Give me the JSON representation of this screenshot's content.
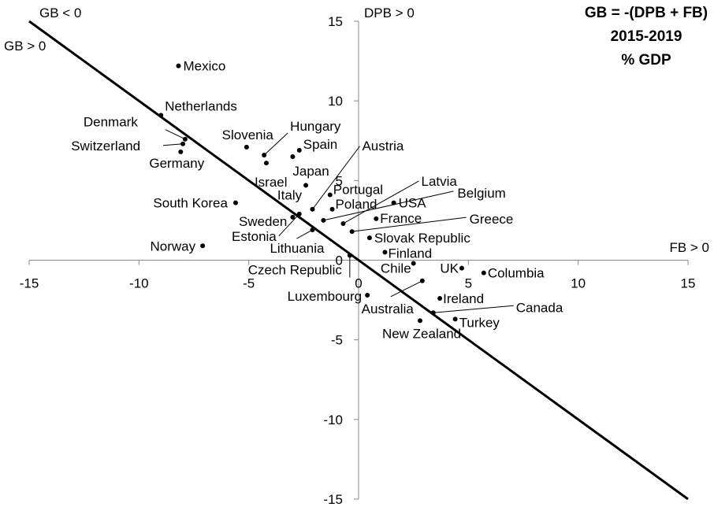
{
  "chart_data": {
    "type": "scatter",
    "title_lines": [
      "GB = -(DPB + FB)",
      "2015-2019",
      "% GDP"
    ],
    "quadrant_labels": {
      "top_left_neg": "GB < 0",
      "top_left_pos": "GB > 0",
      "y_axis_positive": "DPB > 0",
      "x_axis_positive": "FB > 0"
    },
    "xlim": [
      -15,
      15
    ],
    "ylim": [
      -15,
      15
    ],
    "x_ticks": [
      -15,
      -10,
      -5,
      0,
      5,
      10,
      15
    ],
    "y_ticks": [
      15,
      10,
      5,
      0,
      -5,
      -10,
      -15
    ],
    "x_tick_labels": [
      "-15",
      "-10",
      "-5",
      "0",
      "5",
      "10",
      "15"
    ],
    "y_tick_labels": [
      "15",
      "10",
      "5",
      "0",
      "-5",
      "-10",
      "-15"
    ],
    "reference_line": {
      "slope": -1,
      "intercept": 0
    },
    "points": [
      {
        "name": "Mexico",
        "x": -8.2,
        "y": 12.2
      },
      {
        "name": "Netherlands",
        "x": -9.0,
        "y": 9.1
      },
      {
        "name": "Denmark",
        "x": -7.9,
        "y": 7.6
      },
      {
        "name": "Switzerland",
        "x": -8.0,
        "y": 7.3
      },
      {
        "name": "Germany",
        "x": -8.1,
        "y": 6.8
      },
      {
        "name": "Slovenia",
        "x": -5.1,
        "y": 7.1
      },
      {
        "name": "Hungary",
        "x": -4.3,
        "y": 6.6
      },
      {
        "name": "Spain",
        "x": -2.7,
        "y": 6.9
      },
      {
        "name": "Israel",
        "x": -4.2,
        "y": 6.1
      },
      {
        "name": "Japan",
        "x": -3.0,
        "y": 6.5
      },
      {
        "name": "Austria",
        "x": -2.1,
        "y": 3.2
      },
      {
        "name": "Italy",
        "x": -2.4,
        "y": 4.7
      },
      {
        "name": "South Korea",
        "x": -5.6,
        "y": 3.6
      },
      {
        "name": "Portugal",
        "x": -1.3,
        "y": 4.1
      },
      {
        "name": "Latvia",
        "x": -0.7,
        "y": 2.3
      },
      {
        "name": "USA",
        "x": 1.6,
        "y": 3.6
      },
      {
        "name": "Belgium",
        "x": -1.6,
        "y": 2.5
      },
      {
        "name": "Poland",
        "x": -1.2,
        "y": 3.2
      },
      {
        "name": "France",
        "x": 0.8,
        "y": 2.6
      },
      {
        "name": "Sweden",
        "x": -3.0,
        "y": 2.7
      },
      {
        "name": "Estonia",
        "x": -2.7,
        "y": 2.9
      },
      {
        "name": "Greece",
        "x": -0.3,
        "y": 1.8
      },
      {
        "name": "Lithuania",
        "x": -2.1,
        "y": 1.9
      },
      {
        "name": "Slovak Republic",
        "x": 0.5,
        "y": 1.4
      },
      {
        "name": "Norway",
        "x": -7.1,
        "y": 0.9
      },
      {
        "name": "Finland",
        "x": 1.2,
        "y": 0.5
      },
      {
        "name": "Czech Republic",
        "x": -0.4,
        "y": 0.3
      },
      {
        "name": "Chile",
        "x": 2.5,
        "y": -0.2
      },
      {
        "name": "UK",
        "x": 4.7,
        "y": -0.5
      },
      {
        "name": "Columbia",
        "x": 5.7,
        "y": -0.8
      },
      {
        "name": "Luxembourg",
        "x": 0.4,
        "y": -2.2
      },
      {
        "name": "Australia",
        "x": 2.9,
        "y": -1.3
      },
      {
        "name": "Ireland",
        "x": 3.7,
        "y": -2.4
      },
      {
        "name": "Canada",
        "x": 3.4,
        "y": -3.3
      },
      {
        "name": "Turkey",
        "x": 4.4,
        "y": -3.7
      },
      {
        "name": "New Zealand",
        "x": 2.8,
        "y": -3.8
      }
    ]
  }
}
